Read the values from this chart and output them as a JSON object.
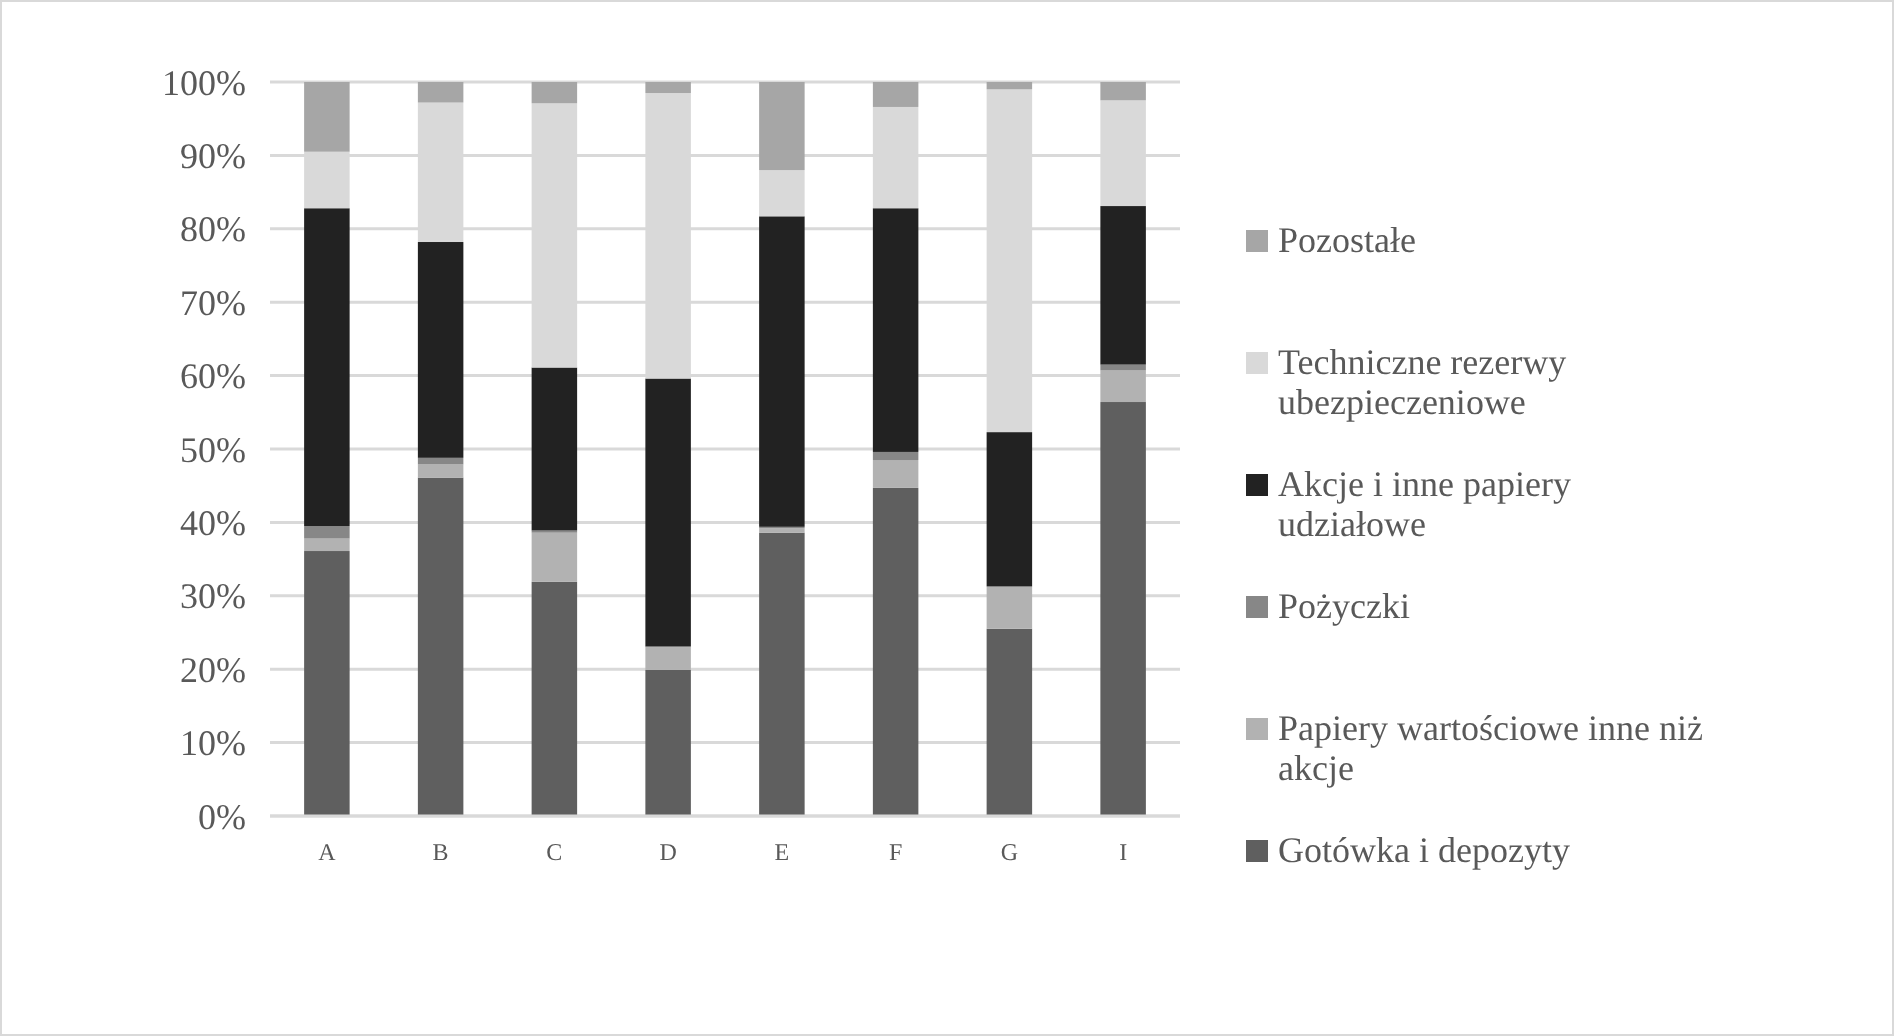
{
  "chart_data": {
    "type": "bar",
    "stacked": true,
    "categories": [
      "A",
      "B",
      "C",
      "D",
      "E",
      "F",
      "G",
      "I"
    ],
    "series": [
      {
        "name": "Gotówka i depozyty",
        "color": "#5f5f5f",
        "values": [
          36.1,
          46.1,
          31.9,
          19.9,
          38.6,
          44.7,
          25.5,
          56.4
        ]
      },
      {
        "name": "Papiery wartościowe inne niż akcje",
        "color": "#b2b2b2",
        "values": [
          1.7,
          1.8,
          6.7,
          3.1,
          0.6,
          3.8,
          5.7,
          4.3
        ]
      },
      {
        "name": "Pożyczki",
        "color": "#878787",
        "values": [
          1.7,
          0.9,
          0.3,
          0.1,
          0.2,
          1.1,
          0.1,
          0.8
        ]
      },
      {
        "name": "Akcje i inne papiery udziałowe",
        "color": "#222222",
        "values": [
          43.3,
          29.4,
          22.2,
          36.5,
          42.3,
          33.2,
          21.0,
          21.6
        ]
      },
      {
        "name": "Techniczne rezerwy ubezpieczeniowe",
        "color": "#d9d9d9",
        "values": [
          7.7,
          19.0,
          36.0,
          38.9,
          6.3,
          13.8,
          46.7,
          14.4
        ]
      },
      {
        "name": "Pozostałe",
        "color": "#a6a6a6",
        "values": [
          9.5,
          2.8,
          2.9,
          1.5,
          12.0,
          3.4,
          1.0,
          2.5
        ]
      }
    ],
    "ylim": [
      0,
      100
    ],
    "yticks": [
      {
        "value": 0,
        "label": "0%"
      },
      {
        "value": 10,
        "label": "10%"
      },
      {
        "value": 20,
        "label": "20%"
      },
      {
        "value": 30,
        "label": "30%"
      },
      {
        "value": 40,
        "label": "40%"
      },
      {
        "value": 50,
        "label": "50%"
      },
      {
        "value": 60,
        "label": "60%"
      },
      {
        "value": 70,
        "label": "70%"
      },
      {
        "value": 80,
        "label": "80%"
      },
      {
        "value": 90,
        "label": "90%"
      },
      {
        "value": 100,
        "label": "100%"
      }
    ],
    "grid": "y",
    "legend": "right"
  }
}
